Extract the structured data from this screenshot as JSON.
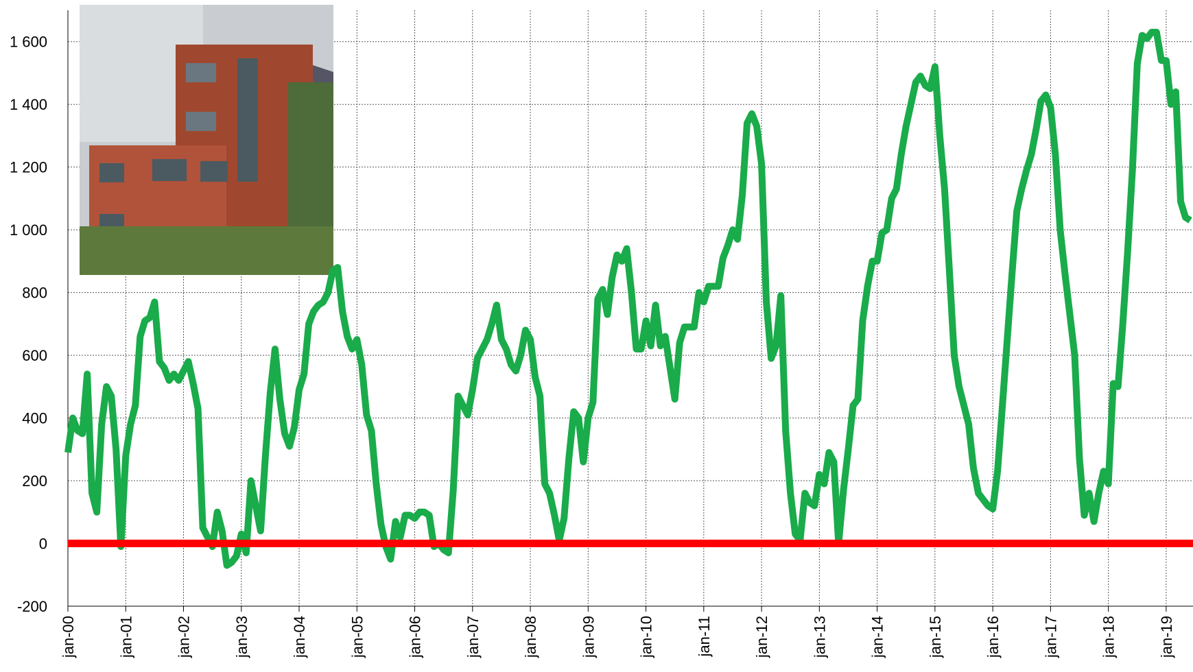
{
  "chart_data": {
    "type": "line",
    "categories": [
      "jan-00",
      null,
      null,
      null,
      null,
      null,
      null,
      null,
      null,
      null,
      null,
      null,
      "jan-01",
      null,
      null,
      null,
      null,
      null,
      null,
      null,
      null,
      null,
      null,
      null,
      "jan-02",
      null,
      null,
      null,
      null,
      null,
      null,
      null,
      null,
      null,
      null,
      null,
      "jan-03",
      null,
      null,
      null,
      null,
      null,
      null,
      null,
      null,
      null,
      null,
      null,
      "jan-04",
      null,
      null,
      null,
      null,
      null,
      null,
      null,
      null,
      null,
      null,
      null,
      "jan-05",
      null,
      null,
      null,
      null,
      null,
      null,
      null,
      null,
      null,
      null,
      null,
      "jan-06",
      null,
      null,
      null,
      null,
      null,
      null,
      null,
      null,
      null,
      null,
      null,
      "jan-07",
      null,
      null,
      null,
      null,
      null,
      null,
      null,
      null,
      null,
      null,
      null,
      "jan-08",
      null,
      null,
      null,
      null,
      null,
      null,
      null,
      null,
      null,
      null,
      null,
      "jan-09",
      null,
      null,
      null,
      null,
      null,
      null,
      null,
      null,
      null,
      null,
      null,
      "jan-10",
      null,
      null,
      null,
      null,
      null,
      null,
      null,
      null,
      null,
      null,
      null,
      "jan-11",
      null,
      null,
      null,
      null,
      null,
      null,
      null,
      null,
      null,
      null,
      null,
      "jan-12",
      null,
      null,
      null,
      null,
      null,
      null,
      null,
      null,
      null,
      null,
      null,
      "jan-13",
      null,
      null,
      null,
      null,
      null,
      null,
      null,
      null,
      null,
      null,
      null,
      "jan-14",
      null,
      null,
      null,
      null,
      null,
      null,
      null,
      null,
      null,
      null,
      null,
      "jan-15",
      null,
      null,
      null,
      null,
      null,
      null,
      null,
      null,
      null,
      null,
      null,
      "jan-16",
      null,
      null,
      null,
      null,
      null,
      null,
      null,
      null,
      null,
      null,
      null,
      "jan-17",
      null,
      null,
      null,
      null,
      null,
      null,
      null,
      null,
      null,
      null,
      null,
      "jan-18",
      null,
      null,
      null,
      null,
      null,
      null,
      null,
      null,
      null,
      null,
      null,
      "jan-19",
      null,
      null,
      null,
      null,
      null
    ],
    "series": [
      {
        "color": "#1aab4b",
        "values": [
          290,
          400,
          360,
          350,
          540,
          160,
          100,
          380,
          500,
          470,
          300,
          -10,
          280,
          380,
          440,
          660,
          710,
          720,
          770,
          580,
          560,
          520,
          540,
          520,
          550,
          580,
          510,
          430,
          50,
          20,
          -10,
          100,
          40,
          -70,
          -60,
          -40,
          30,
          -30,
          200,
          120,
          40,
          280,
          480,
          620,
          460,
          350,
          310,
          370,
          490,
          540,
          700,
          740,
          760,
          770,
          800,
          870,
          880,
          740,
          660,
          620,
          650,
          570,
          410,
          360,
          190,
          60,
          -10,
          -50,
          70,
          20,
          90,
          90,
          80,
          100,
          100,
          90,
          -10,
          0,
          -20,
          -30,
          170,
          470,
          440,
          410,
          490,
          590,
          620,
          650,
          700,
          760,
          650,
          620,
          570,
          550,
          600,
          680,
          650,
          530,
          470,
          190,
          160,
          90,
          10,
          80,
          270,
          420,
          400,
          260,
          400,
          450,
          780,
          810,
          730,
          850,
          920,
          900,
          940,
          800,
          620,
          620,
          710,
          630,
          760,
          630,
          660,
          560,
          460,
          640,
          690,
          690,
          690,
          800,
          770,
          820,
          820,
          820,
          910,
          950,
          1000,
          970,
          1110,
          1340,
          1370,
          1330,
          1210,
          770,
          590,
          630,
          790,
          360,
          160,
          30,
          10,
          160,
          130,
          120,
          220,
          190,
          290,
          260,
          0,
          170,
          300,
          440,
          460,
          710,
          820,
          900,
          900,
          990,
          1000,
          1100,
          1130,
          1240,
          1330,
          1400,
          1470,
          1490,
          1460,
          1450,
          1520,
          1300,
          1130,
          870,
          600,
          500,
          440,
          380,
          240,
          160,
          140,
          120,
          110,
          230,
          440,
          650,
          860,
          1060,
          1130,
          1190,
          1240,
          1320,
          1410,
          1430,
          1390,
          1240,
          1000,
          860,
          730,
          600,
          270,
          90,
          160,
          70,
          160,
          230,
          190,
          510,
          500,
          700,
          930,
          1190,
          1530,
          1620,
          1610,
          1630,
          1630,
          1540,
          1540,
          1400,
          1440,
          1090,
          1040,
          1030
        ]
      }
    ],
    "reference_line": {
      "value": 0,
      "color": "#ff0000"
    },
    "ylim": [
      -200,
      1700
    ],
    "yticks": [
      -200,
      0,
      200,
      400,
      600,
      800,
      {
        "value": 1000,
        "label": "1 000"
      },
      {
        "value": 1200,
        "label": "1 200"
      },
      {
        "value": 1400,
        "label": "1 400"
      },
      {
        "value": 1600,
        "label": "1 600"
      }
    ],
    "grid": true
  }
}
